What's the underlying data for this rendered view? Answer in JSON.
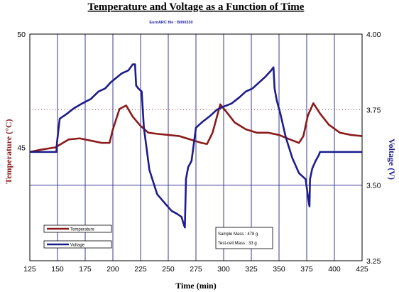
{
  "chart_data": {
    "type": "line",
    "title": "Temperature and Voltage as a Function of Time",
    "subtitle": "EuroARC file : B000330",
    "xlabel": "Time (min)",
    "ylabel_left": "Temperature (°C)",
    "ylabel_right": "Voltage (V)",
    "xlim": [
      125,
      425
    ],
    "ylim_left": [
      40,
      50
    ],
    "ylim_right": [
      3.25,
      4.0
    ],
    "x_ticks": [
      125,
      150,
      175,
      200,
      225,
      250,
      275,
      300,
      325,
      350,
      375,
      400,
      425
    ],
    "left_tick_labels": [
      "50",
      "45"
    ],
    "right_tick_labels": [
      "4.00",
      "3.75",
      "3.50",
      "3.25"
    ],
    "grid": "vertical gridlines every 25 min; horizontal reference lines at 3.75 V (dotted) and 3.50 V",
    "colors": {
      "temperature": "#8b1a1a",
      "voltage": "#1c1c8c",
      "grid": "#3a3a9a",
      "ref_dotted": "#b04040"
    },
    "series": [
      {
        "name": "Temperature",
        "axis": "left",
        "x": [
          125,
          135,
          148,
          160,
          170,
          180,
          190,
          197,
          200,
          206,
          212,
          218,
          225,
          232,
          240,
          250,
          260,
          270,
          280,
          285,
          290,
          297,
          302,
          310,
          320,
          330,
          340,
          350,
          360,
          368,
          372,
          376,
          381,
          387,
          395,
          405,
          415,
          425
        ],
        "y": [
          44.8,
          44.9,
          45.0,
          45.35,
          45.4,
          45.3,
          45.2,
          45.2,
          45.8,
          46.7,
          46.85,
          46.35,
          45.95,
          45.65,
          45.6,
          45.55,
          45.5,
          45.35,
          45.2,
          45.15,
          45.65,
          46.9,
          46.6,
          46.1,
          45.8,
          45.65,
          45.65,
          45.55,
          45.35,
          45.2,
          45.5,
          46.4,
          46.95,
          46.5,
          46.0,
          45.65,
          45.55,
          45.5
        ]
      },
      {
        "name": "Voltage",
        "axis": "right",
        "x": [
          125,
          149,
          149.5,
          152,
          158,
          165,
          172,
          180,
          187,
          193,
          198,
          203,
          208,
          214,
          218,
          220,
          221,
          223,
          226,
          228,
          233,
          240,
          247,
          253,
          258,
          262,
          264,
          265,
          266,
          268,
          271,
          275,
          281,
          288,
          294,
          300,
          307,
          314,
          320,
          326,
          332,
          338,
          343,
          345,
          346,
          348,
          351,
          356,
          362,
          368,
          374,
          377,
          377.5,
          378,
          380,
          383,
          386,
          387,
          425
        ],
        "y": [
          3.61,
          3.61,
          3.64,
          3.72,
          3.735,
          3.755,
          3.77,
          3.785,
          3.81,
          3.82,
          3.84,
          3.855,
          3.87,
          3.88,
          3.9,
          3.9,
          3.83,
          3.82,
          3.81,
          3.69,
          3.55,
          3.47,
          3.44,
          3.415,
          3.405,
          3.395,
          3.37,
          3.36,
          3.52,
          3.56,
          3.58,
          3.69,
          3.71,
          3.73,
          3.75,
          3.76,
          3.77,
          3.79,
          3.81,
          3.82,
          3.84,
          3.86,
          3.88,
          3.89,
          3.82,
          3.78,
          3.74,
          3.66,
          3.59,
          3.54,
          3.52,
          3.44,
          3.43,
          3.52,
          3.555,
          3.58,
          3.6,
          3.61,
          3.61
        ]
      }
    ],
    "legend": {
      "placement": "bottom-left",
      "entries": [
        "Temperature",
        "Voltage"
      ]
    },
    "annotation": {
      "lines": [
        "Sample Mass : 478 g",
        "Test-cell Mass : 33 g"
      ],
      "placement": "bottom-center-right"
    }
  }
}
